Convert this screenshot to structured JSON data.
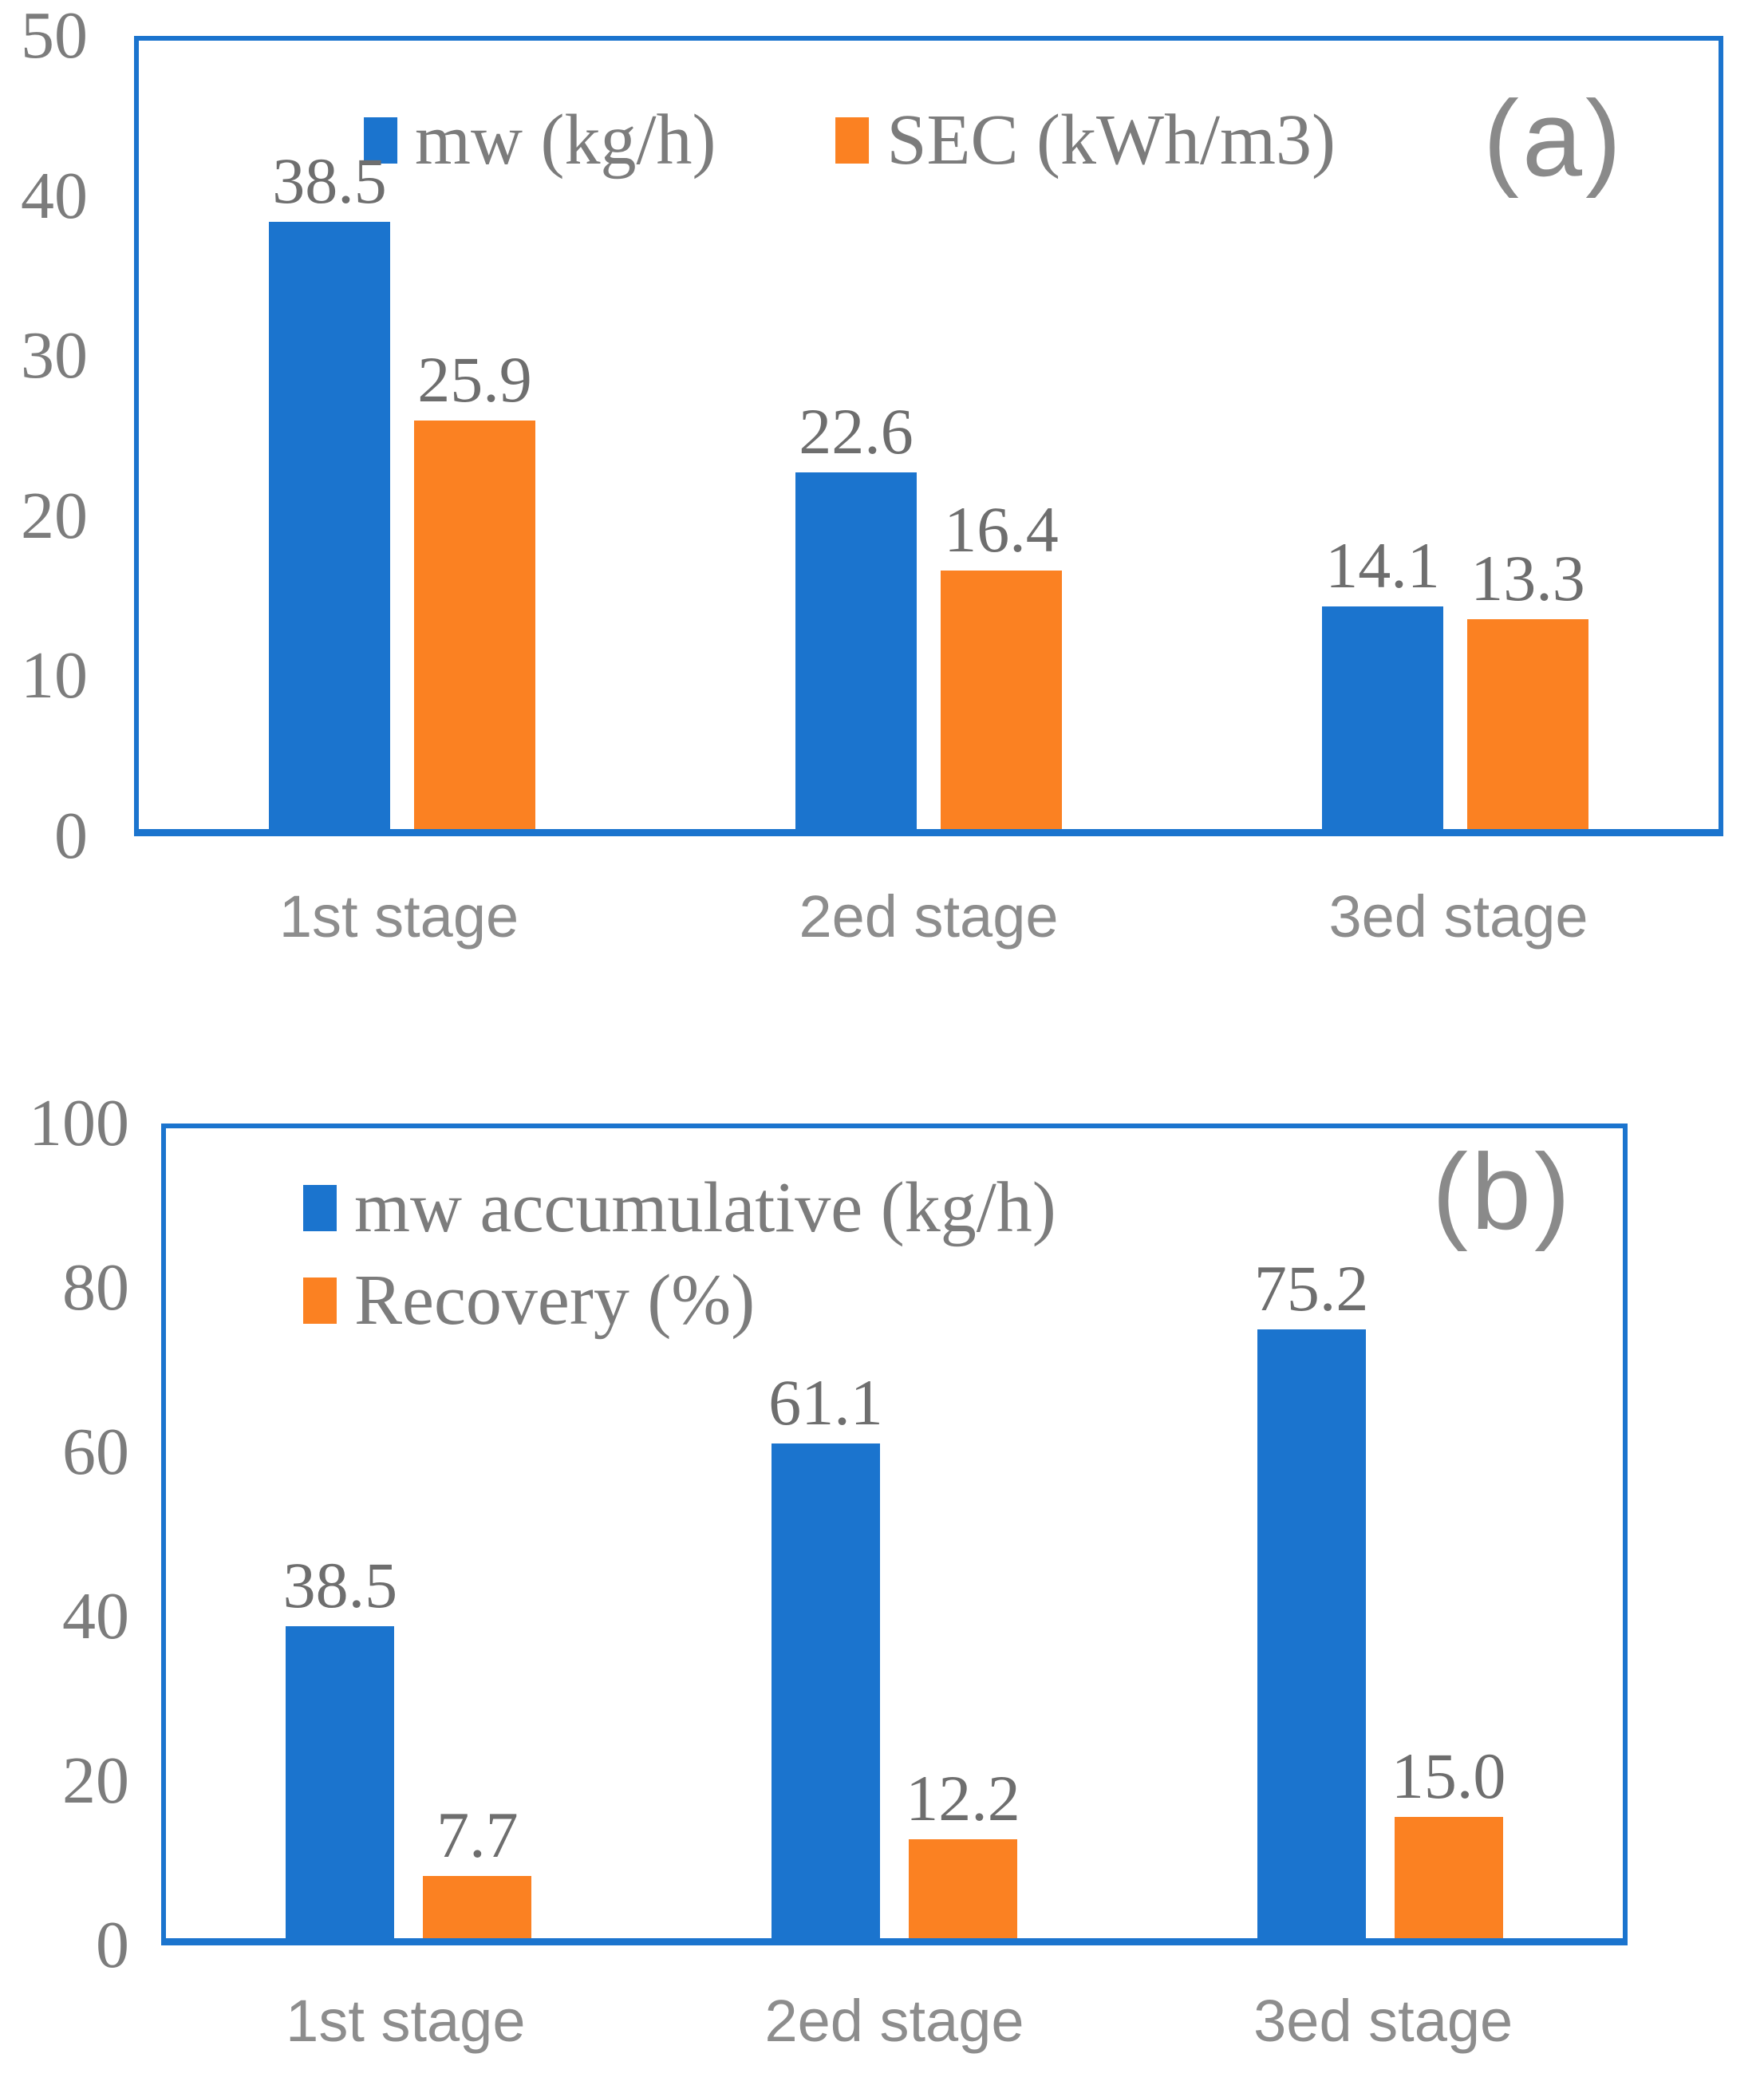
{
  "figure": {
    "background": "#ffffff",
    "colors": {
      "series_blue": "#1B74CE",
      "series_orange": "#FB8122",
      "frame_blue": "#1B74CE",
      "tick_text_gray": "#7C7C7C",
      "data_label_gray": "#6E6E6E",
      "xlabel_gray": "#8D8D8D",
      "panel_letter_gray": "#8A8A8A"
    }
  },
  "chart_data": [
    {
      "id": "a",
      "type": "bar",
      "panel_label": "(a)",
      "title": "",
      "xlabel": "",
      "ylabel": "",
      "categories": [
        "1st stage",
        "2ed stage",
        "3ed stage"
      ],
      "series": [
        {
          "name": "mw (kg/h)",
          "color": "#1B74CE",
          "values": [
            38.5,
            22.6,
            14.1
          ]
        },
        {
          "name": "SEC (kWh/m3)",
          "color": "#FB8122",
          "values": [
            25.9,
            16.4,
            13.3
          ]
        }
      ],
      "ylim": [
        0,
        50
      ],
      "yticks": [
        "0",
        "10",
        "20",
        "30",
        "40",
        "50"
      ],
      "grid": false,
      "legend_position": "top-center-horizontal",
      "data_labels_decimals": 1
    },
    {
      "id": "b",
      "type": "bar",
      "panel_label": "(b)",
      "title": "",
      "xlabel": "",
      "ylabel": "",
      "categories": [
        "1st stage",
        "2ed stage",
        "3ed stage"
      ],
      "series": [
        {
          "name": "mw accumulative (kg/h)",
          "color": "#1B74CE",
          "values": [
            38.5,
            61.1,
            75.2
          ]
        },
        {
          "name": "Recovery (%)",
          "color": "#FB8122",
          "values": [
            7.7,
            12.2,
            15.0
          ]
        }
      ],
      "ylim": [
        0,
        100
      ],
      "yticks": [
        "0",
        "20",
        "40",
        "60",
        "80",
        "100"
      ],
      "grid": false,
      "legend_position": "top-left-stacked",
      "data_labels_decimals": 1
    }
  ]
}
